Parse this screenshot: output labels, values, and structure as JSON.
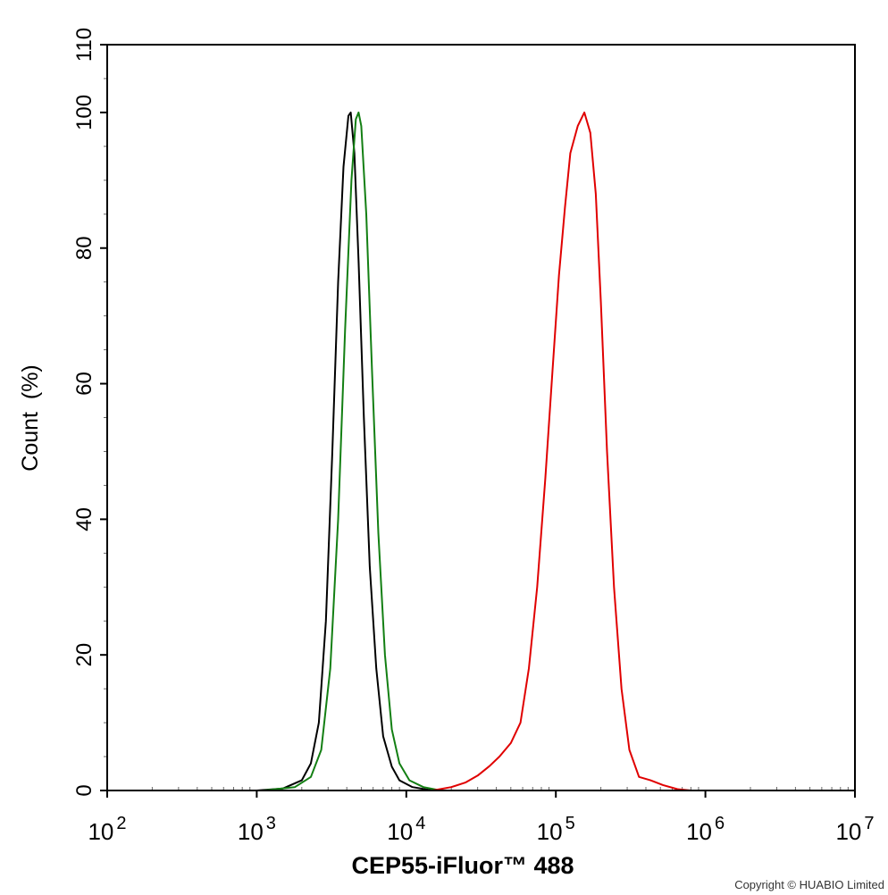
{
  "chart_data": {
    "type": "line",
    "xlabel": "CEP55-iFluor™ 488",
    "ylabel": "Count  (%)",
    "x_scale": "log",
    "xlim": [
      100,
      10000000
    ],
    "ylim": [
      0,
      110
    ],
    "x_ticks": [
      {
        "value": 100,
        "base": "10",
        "exp": "2"
      },
      {
        "value": 1000,
        "base": "10",
        "exp": "3"
      },
      {
        "value": 10000,
        "base": "10",
        "exp": "4"
      },
      {
        "value": 100000,
        "base": "10",
        "exp": "5"
      },
      {
        "value": 1000000,
        "base": "10",
        "exp": "6"
      },
      {
        "value": 10000000,
        "base": "10",
        "exp": "7"
      }
    ],
    "y_ticks": [
      0,
      20,
      40,
      60,
      80,
      100,
      110
    ],
    "grid": false,
    "legend": "none",
    "series": [
      {
        "color": "#000000",
        "points": [
          [
            1000,
            0
          ],
          [
            1500,
            0.3
          ],
          [
            2000,
            1.5
          ],
          [
            2300,
            4
          ],
          [
            2600,
            10
          ],
          [
            2900,
            25
          ],
          [
            3200,
            50
          ],
          [
            3500,
            75
          ],
          [
            3800,
            92
          ],
          [
            4100,
            99.5
          ],
          [
            4250,
            100
          ],
          [
            4500,
            94
          ],
          [
            4800,
            78
          ],
          [
            5200,
            55
          ],
          [
            5700,
            33
          ],
          [
            6300,
            18
          ],
          [
            7000,
            8
          ],
          [
            8000,
            3.5
          ],
          [
            9000,
            1.5
          ],
          [
            11000,
            0.5
          ],
          [
            15000,
            0
          ]
        ]
      },
      {
        "color": "#137f13",
        "points": [
          [
            1100,
            0
          ],
          [
            1800,
            0.5
          ],
          [
            2300,
            2
          ],
          [
            2700,
            6
          ],
          [
            3100,
            18
          ],
          [
            3500,
            40
          ],
          [
            3900,
            68
          ],
          [
            4300,
            90
          ],
          [
            4600,
            99
          ],
          [
            4800,
            100
          ],
          [
            5000,
            98
          ],
          [
            5400,
            85
          ],
          [
            5900,
            62
          ],
          [
            6500,
            38
          ],
          [
            7200,
            20
          ],
          [
            8000,
            9
          ],
          [
            9000,
            4
          ],
          [
            10500,
            1.5
          ],
          [
            13000,
            0.5
          ],
          [
            17000,
            0
          ]
        ]
      },
      {
        "color": "#e00000",
        "points": [
          [
            15000,
            0
          ],
          [
            20000,
            0.5
          ],
          [
            25000,
            1.2
          ],
          [
            30000,
            2.2
          ],
          [
            36000,
            3.6
          ],
          [
            42000,
            5
          ],
          [
            50000,
            7
          ],
          [
            58000,
            10
          ],
          [
            66000,
            18
          ],
          [
            75000,
            30
          ],
          [
            85000,
            46
          ],
          [
            95000,
            62
          ],
          [
            105000,
            76
          ],
          [
            115000,
            86
          ],
          [
            125000,
            94
          ],
          [
            140000,
            98
          ],
          [
            155000,
            100
          ],
          [
            170000,
            97
          ],
          [
            185000,
            88
          ],
          [
            200000,
            72
          ],
          [
            220000,
            50
          ],
          [
            245000,
            30
          ],
          [
            275000,
            15
          ],
          [
            310000,
            6
          ],
          [
            360000,
            2
          ],
          [
            430000,
            1.5
          ],
          [
            520000,
            0.8
          ],
          [
            650000,
            0.2
          ],
          [
            800000,
            0
          ]
        ]
      }
    ]
  },
  "copyright": "Copyright © HUABIO Limited"
}
